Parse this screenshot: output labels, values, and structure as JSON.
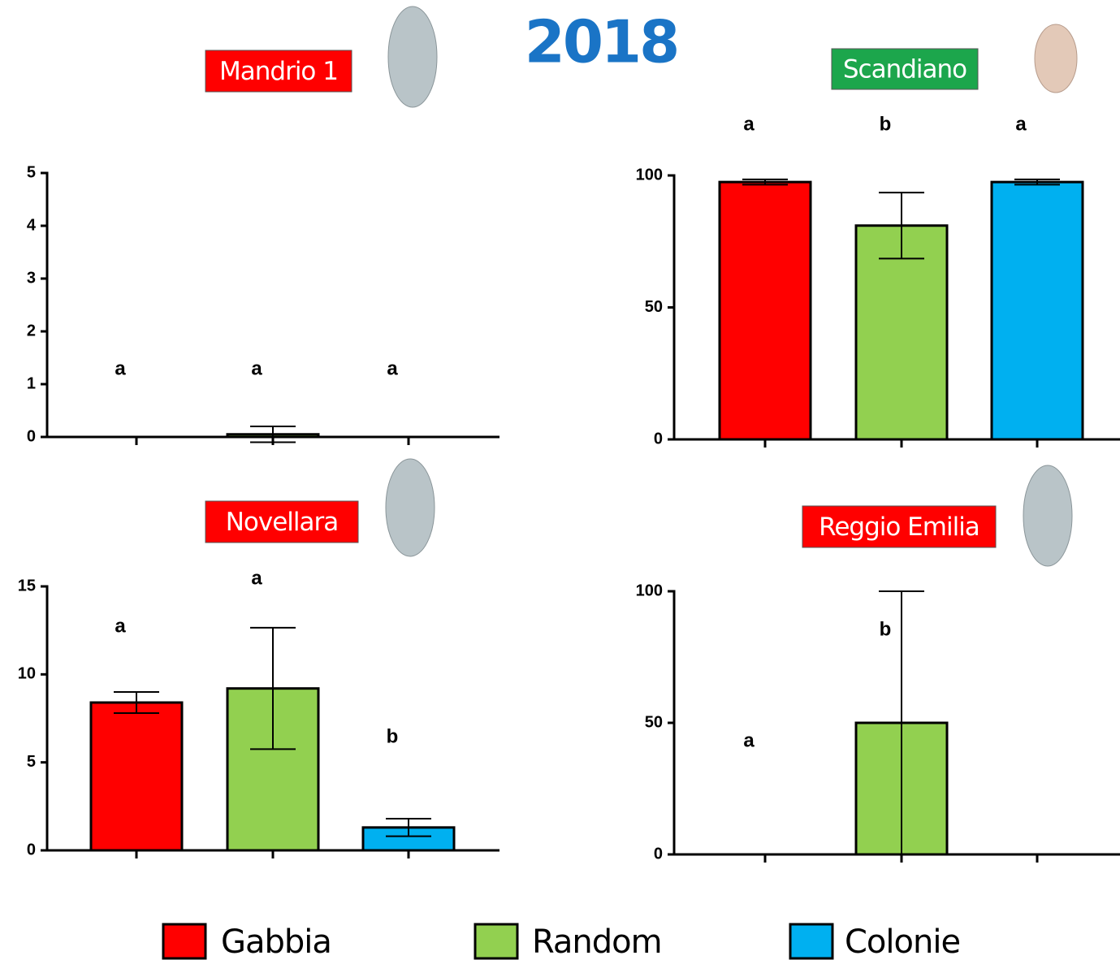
{
  "title": "2018",
  "chart_data": [
    {
      "type": "bar",
      "title": "Mandrio 1",
      "title_color": "#ff0000",
      "ylim": [
        0,
        5
      ],
      "yticks": [
        0,
        1,
        2,
        3,
        4,
        5
      ],
      "annotations": [
        "a",
        "a",
        "a"
      ],
      "series": [
        {
          "name": "Gabbia",
          "color": "#ff0000",
          "values": [
            0
          ],
          "errors": [
            0
          ]
        },
        {
          "name": "Random",
          "color": "#92d050",
          "values": [
            0.05
          ],
          "errors": [
            0.15
          ]
        },
        {
          "name": "Colonie",
          "color": "#00b0f0",
          "values": [
            0
          ],
          "errors": [
            0
          ]
        }
      ]
    },
    {
      "type": "bar",
      "title": "Scandiano",
      "title_color": "#1ca64c",
      "ylim": [
        0,
        100
      ],
      "yticks": [
        0,
        50,
        100
      ],
      "annotations": [
        "a",
        "b",
        "a"
      ],
      "series": [
        {
          "name": "Gabbia",
          "color": "#ff0000",
          "values": [
            97.5
          ],
          "errors": [
            1
          ]
        },
        {
          "name": "Random",
          "color": "#92d050",
          "values": [
            81
          ],
          "errors": [
            12.5
          ]
        },
        {
          "name": "Colonie",
          "color": "#00b0f0",
          "values": [
            97.5
          ],
          "errors": [
            1
          ]
        }
      ]
    },
    {
      "type": "bar",
      "title": "Novellara",
      "title_color": "#ff0000",
      "ylim": [
        0,
        15
      ],
      "yticks": [
        0,
        5,
        10,
        15
      ],
      "annotations": [
        "a",
        "a",
        "b"
      ],
      "series": [
        {
          "name": "Gabbia",
          "color": "#ff0000",
          "values": [
            8.4
          ],
          "errors": [
            0.6
          ]
        },
        {
          "name": "Random",
          "color": "#92d050",
          "values": [
            9.2
          ],
          "errors": [
            3.45
          ]
        },
        {
          "name": "Colonie",
          "color": "#00b0f0",
          "values": [
            1.3
          ],
          "errors": [
            0.5
          ]
        }
      ]
    },
    {
      "type": "bar",
      "title": "Reggio Emilia",
      "title_color": "#ff0000",
      "ylim": [
        0,
        100
      ],
      "yticks": [
        0,
        50,
        100
      ],
      "annotations": [
        "a",
        "b",
        null
      ],
      "series": [
        {
          "name": "Gabbia",
          "color": "#ff0000",
          "values": [
            0
          ],
          "errors": [
            0
          ]
        },
        {
          "name": "Random",
          "color": "#92d050",
          "values": [
            50
          ],
          "errors": [
            50
          ]
        },
        {
          "name": "Colonie",
          "color": "#00b0f0",
          "values": [
            0
          ],
          "errors": [
            0
          ]
        }
      ]
    }
  ]
}
